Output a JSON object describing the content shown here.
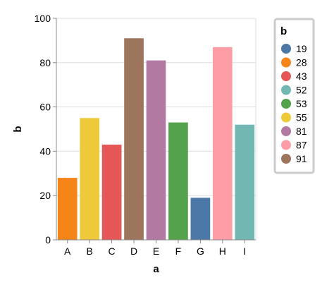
{
  "chart_data": {
    "type": "bar",
    "title": "",
    "xlabel": "a",
    "ylabel": "b",
    "ylim": [
      0,
      100
    ],
    "yticks": [
      0,
      20,
      40,
      60,
      80,
      100
    ],
    "grid": true,
    "categories": [
      "A",
      "B",
      "C",
      "D",
      "E",
      "F",
      "G",
      "H",
      "I"
    ],
    "values": [
      28,
      55,
      43,
      91,
      81,
      53,
      19,
      87,
      52
    ],
    "bar_colors": [
      "#f58518",
      "#eeca3b",
      "#e45756",
      "#9d755d",
      "#b279a2",
      "#54a24b",
      "#4c78a8",
      "#ff9da6",
      "#72b7b2"
    ],
    "legend": {
      "title": "b",
      "placement": "right",
      "entries": [
        {
          "label": "19",
          "color": "#4c78a8"
        },
        {
          "label": "28",
          "color": "#f58518"
        },
        {
          "label": "43",
          "color": "#e45756"
        },
        {
          "label": "52",
          "color": "#72b7b2"
        },
        {
          "label": "53",
          "color": "#54a24b"
        },
        {
          "label": "55",
          "color": "#eeca3b"
        },
        {
          "label": "81",
          "color": "#b279a2"
        },
        {
          "label": "87",
          "color": "#ff9da6"
        },
        {
          "label": "91",
          "color": "#9d755d"
        }
      ]
    }
  }
}
